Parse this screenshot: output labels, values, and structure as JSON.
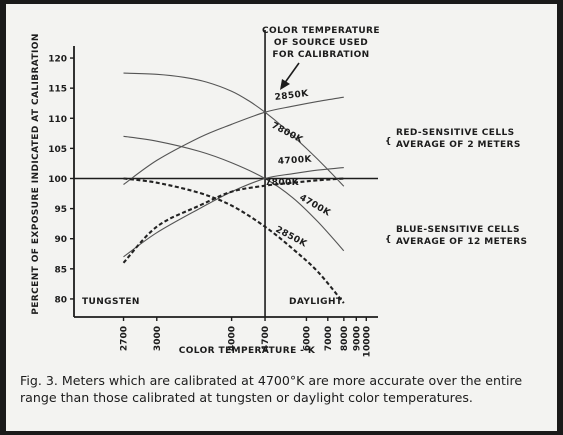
{
  "chart_data": {
    "type": "line",
    "xlabel": "COLOR TEMPERATURE - K",
    "ylabel": "PERCENT OF EXPOSURE INDICATED AT CALIBRATION",
    "xscale": "reciprocal",
    "xlim": [
      2350,
      11500
    ],
    "ylim": [
      77,
      122
    ],
    "x_ticks": [
      2700,
      3000,
      4000,
      4700,
      6000,
      7000,
      8000,
      9000,
      10000
    ],
    "y_ticks": [
      80,
      85,
      90,
      95,
      100,
      105,
      110,
      115,
      120
    ],
    "grid": false,
    "series": [
      {
        "group": "red",
        "name": "2850K",
        "x": [
          2700,
          3000,
          3300,
          3600,
          4000,
          4350,
          4700,
          5200,
          6000,
          7000,
          8000
        ],
        "y": [
          117.5,
          117.3,
          116.8,
          116.0,
          114.5,
          112.8,
          111.0,
          108.5,
          105.0,
          101.5,
          98.7
        ]
      },
      {
        "group": "red",
        "name": "7800K",
        "x": [
          2700,
          3000,
          3500,
          4000,
          4700,
          5500,
          6500,
          8000
        ],
        "y": [
          99.0,
          103.0,
          106.8,
          109.0,
          111.0,
          112.0,
          112.8,
          113.5
        ]
      },
      {
        "group": "red",
        "name": "4700K",
        "x": [
          2700,
          3000,
          3500,
          4000,
          4700,
          5500,
          6500,
          8000
        ],
        "y": [
          107.0,
          106.2,
          104.5,
          102.6,
          100.0,
          96.8,
          92.8,
          88.0
        ]
      },
      {
        "group": "red",
        "name": "",
        "x": [
          2700,
          3000,
          3500,
          4000,
          4700,
          5500,
          6500,
          8000
        ],
        "y": [
          87.0,
          91.0,
          95.0,
          97.8,
          100.0,
          100.8,
          101.4,
          101.8
        ]
      },
      {
        "group": "blue",
        "name": "7800K",
        "x": [
          2700,
          3000,
          3500,
          4000,
          4700,
          5500,
          6500,
          8000
        ],
        "y": [
          86.0,
          92.0,
          95.5,
          97.8,
          98.8,
          99.3,
          99.7,
          100.0
        ]
      },
      {
        "group": "blue",
        "name": "2850K",
        "x": [
          2700,
          3000,
          3500,
          4000,
          4700,
          5500,
          6500,
          8000
        ],
        "y": [
          100.0,
          99.3,
          97.6,
          95.5,
          92.0,
          88.3,
          84.5,
          79.3
        ]
      }
    ],
    "annotations": [
      "COLOR TEMPERATURE OF SOURCE USED FOR CALIBRATION",
      "RED-SENSITIVE CELLS AVERAGE OF 2 METERS",
      "BLUE-SENSITIVE CELLS AVERAGE OF 12 METERS",
      "TUNGSTEN",
      "DAYLIGHT"
    ],
    "curve_labels": [
      "2850K",
      "7800K",
      "4700K",
      "7800K",
      "4700K",
      "2850K"
    ]
  },
  "caption": "Fig. 3.   Meters which are calibrated at 4700°K are more accurate over the entire range than those calibrated at tungsten or daylight color temperatures.",
  "colors": {
    "ink": "#1c1c1c",
    "paper": "#f3f3f1",
    "frame": "#1a1a1a"
  }
}
